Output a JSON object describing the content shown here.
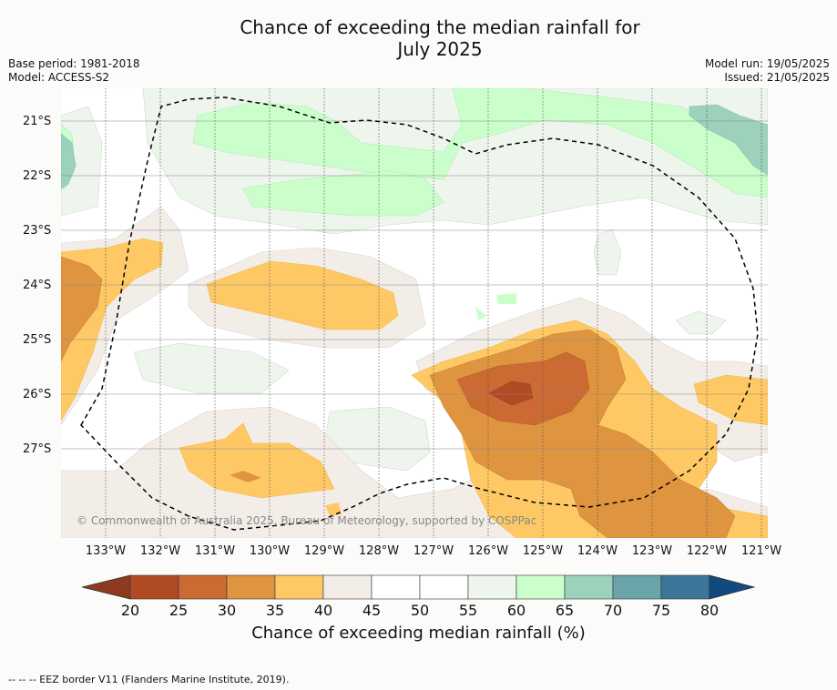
{
  "title_line1": "Chance of exceeding the median rainfall for",
  "title_line2": "July 2025",
  "meta_left": {
    "base_period": "Base period: 1981-2018",
    "model": "Model: ACCESS-S2"
  },
  "meta_right": {
    "model_run": "Model run: 19/05/2025",
    "issued": "Issued: 21/05/2025"
  },
  "map": {
    "lat_ticks": [
      "21°S",
      "22°S",
      "23°S",
      "24°S",
      "25°S",
      "26°S",
      "27°S"
    ],
    "lon_ticks": [
      "133°W",
      "132°W",
      "131°W",
      "130°W",
      "129°W",
      "128°W",
      "127°W",
      "126°W",
      "125°W",
      "124°W",
      "123°W",
      "122°W",
      "121°W"
    ],
    "copyright": "© Commonwealth of Australia 2025, Bureau of Meteorology, supported by COSPPac"
  },
  "colorbar": {
    "labels": [
      "20",
      "25",
      "30",
      "35",
      "40",
      "45",
      "50",
      "55",
      "60",
      "65",
      "70",
      "75",
      "80"
    ],
    "colors": [
      "#8e3a1e",
      "#b04b24",
      "#cc6a34",
      "#df9440",
      "#fec965",
      "#f3ede8",
      "#ffffff",
      "#ffffff",
      "#edf5ec",
      "#caffcb",
      "#9cd1bb",
      "#6aa3a8",
      "#3b7597",
      "#12497f"
    ],
    "title": "Chance of exceeding median rainfall (%)"
  },
  "footer": "--  --  -- EEZ border V11 (Flanders Marine Institute, 2019)."
}
